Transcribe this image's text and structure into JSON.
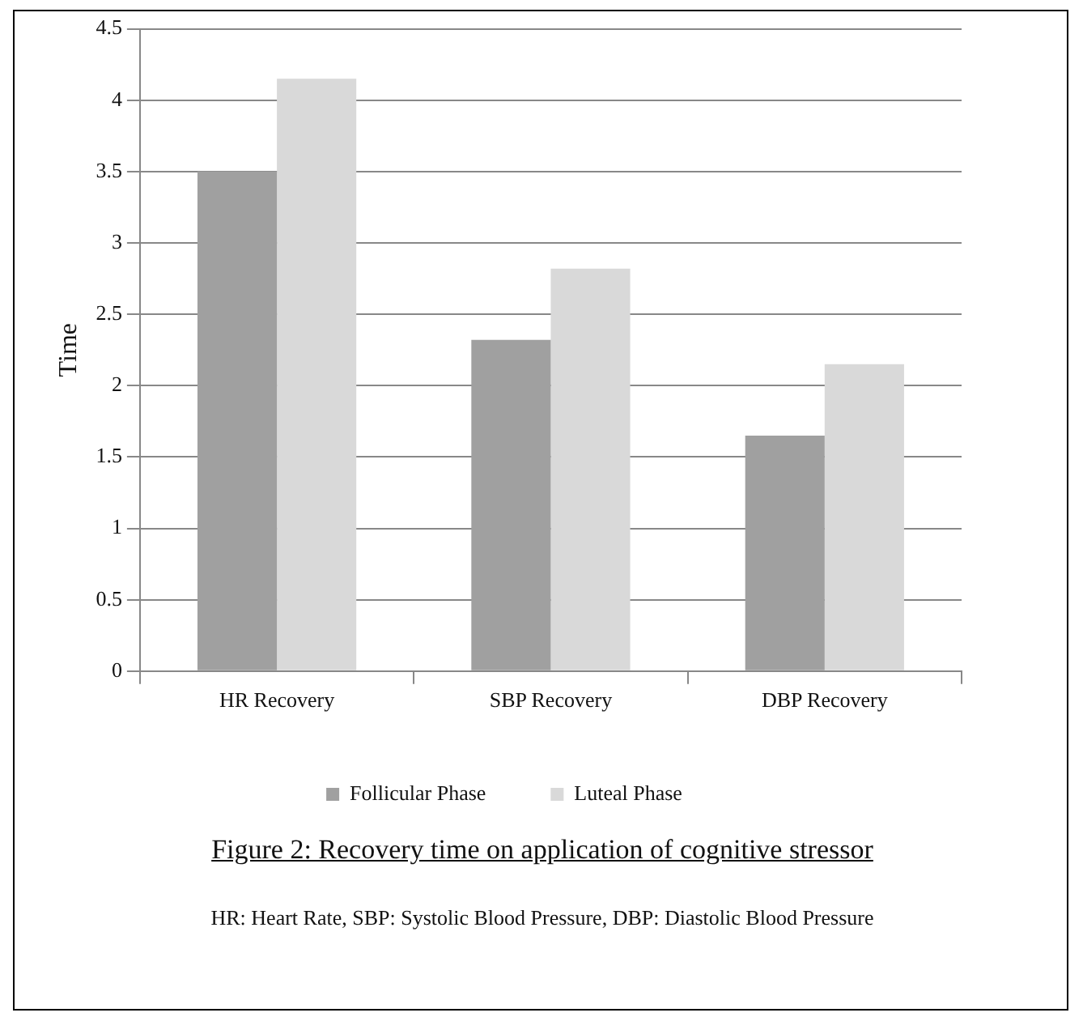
{
  "chart_data": {
    "type": "bar",
    "title": "Figure 2: Recovery time on application of cognitive stressor",
    "ylabel": "Time",
    "categories": [
      "HR Recovery",
      "SBP Recovery",
      "DBP Recovery"
    ],
    "series": [
      {
        "name": "Follicular Phase",
        "color": "#a0a0a0",
        "values": [
          3.5,
          2.32,
          1.65
        ]
      },
      {
        "name": "Luteal Phase",
        "color": "#d9d9d9",
        "values": [
          4.15,
          2.82,
          2.15
        ]
      }
    ],
    "ylim": [
      0,
      4.5
    ],
    "yticks": [
      0,
      0.5,
      1,
      1.5,
      2,
      2.5,
      3,
      3.5,
      4,
      4.5
    ],
    "grid": "y",
    "legend": "bottom",
    "annotations": [
      "HR: Heart Rate, SBP: Systolic Blood Pressure, DBP: Diastolic Blood Pressure"
    ]
  }
}
